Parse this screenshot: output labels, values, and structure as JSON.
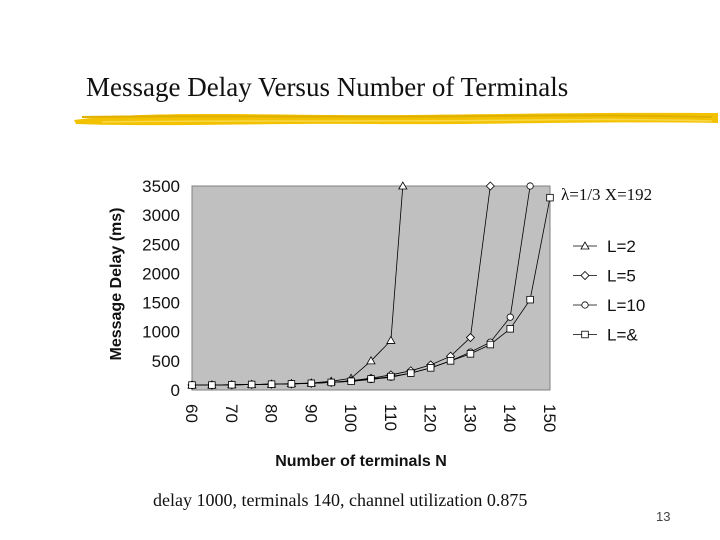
{
  "slide": {
    "title": "Message Delay Versus Number of Terminals",
    "param_label": "λ=1/3  X=192",
    "caption": "delay 1000, terminals 140, channel utilization 0.875",
    "page_number": "13",
    "colors": {
      "plot_bg": "#c0c0c0",
      "brush": "#f2c200",
      "line": "#000000"
    }
  },
  "chart_data": {
    "type": "line",
    "xlabel": "Number of terminals N",
    "ylabel": "Message Delay (ms)",
    "xlim": [
      60,
      150
    ],
    "ylim": [
      0,
      3500
    ],
    "x_ticks": [
      "60",
      "70",
      "80",
      "90",
      "100",
      "110",
      "120",
      "130",
      "140",
      "150"
    ],
    "y_ticks": [
      "0",
      "500",
      "1000",
      "1500",
      "2000",
      "2500",
      "3000",
      "3500"
    ],
    "grid": false,
    "legend_position": "right",
    "series": [
      {
        "name": "L=2",
        "marker": "triangle",
        "line": true,
        "x": [
          60,
          65,
          70,
          75,
          80,
          85,
          90,
          95,
          100,
          105,
          110,
          113
        ],
        "y": [
          85,
          85,
          90,
          95,
          100,
          110,
          120,
          150,
          200,
          500,
          850,
          3500
        ]
      },
      {
        "name": "L=5",
        "marker": "diamond",
        "line": true,
        "x": [
          60,
          65,
          70,
          75,
          80,
          85,
          90,
          95,
          100,
          105,
          110,
          115,
          120,
          125,
          130,
          135
        ],
        "y": [
          85,
          85,
          90,
          95,
          100,
          105,
          115,
          130,
          160,
          200,
          260,
          330,
          430,
          580,
          900,
          3500
        ]
      },
      {
        "name": "L=10",
        "marker": "circle",
        "line": true,
        "x": [
          60,
          65,
          70,
          75,
          80,
          85,
          90,
          95,
          100,
          105,
          110,
          115,
          120,
          125,
          130,
          135,
          140,
          145
        ],
        "y": [
          85,
          85,
          90,
          95,
          100,
          105,
          115,
          130,
          150,
          180,
          220,
          290,
          380,
          500,
          650,
          820,
          1250,
          3500
        ]
      },
      {
        "name": "L=&",
        "marker": "square",
        "line": true,
        "x": [
          60,
          65,
          70,
          75,
          80,
          85,
          90,
          95,
          100,
          105,
          110,
          115,
          120,
          125,
          130,
          135,
          140,
          145,
          150
        ],
        "y": [
          85,
          85,
          90,
          95,
          100,
          105,
          115,
          130,
          150,
          190,
          230,
          290,
          380,
          500,
          620,
          780,
          1050,
          1550,
          3300
        ]
      }
    ]
  }
}
